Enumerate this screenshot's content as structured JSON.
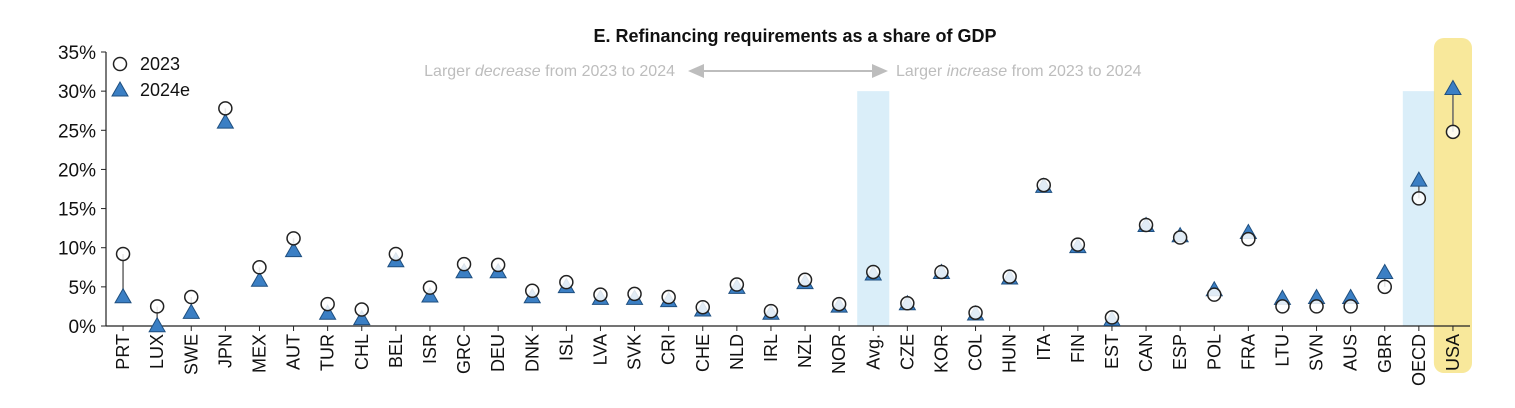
{
  "chart_data": {
    "type": "scatter",
    "title": "E. Refinancing requirements as a share of GDP",
    "xlabel": "",
    "ylabel": "",
    "ylim": [
      0,
      35
    ],
    "yticks": [
      "0%",
      "5%",
      "10%",
      "15%",
      "20%",
      "25%",
      "30%",
      "35%"
    ],
    "categories": [
      "PRT",
      "LUX",
      "SWE",
      "JPN",
      "MEX",
      "AUT",
      "TUR",
      "CHL",
      "BEL",
      "ISR",
      "GRC",
      "DEU",
      "DNK",
      "ISL",
      "LVA",
      "SVK",
      "CRI",
      "CHE",
      "NLD",
      "IRL",
      "NZL",
      "NOR",
      "Avg.",
      "CZE",
      "KOR",
      "COL",
      "HUN",
      "ITA",
      "FIN",
      "EST",
      "CAN",
      "ESP",
      "POL",
      "FRA",
      "LTU",
      "SVN",
      "AUS",
      "GBR",
      "OECD",
      "USA"
    ],
    "series": [
      {
        "name": "2023",
        "marker": "circle",
        "values": [
          9.2,
          2.5,
          3.7,
          27.8,
          7.5,
          11.2,
          2.8,
          2.1,
          9.2,
          4.9,
          7.9,
          7.8,
          4.5,
          5.6,
          4.0,
          4.1,
          3.7,
          2.4,
          5.3,
          1.9,
          5.9,
          2.8,
          6.9,
          2.9,
          6.9,
          1.7,
          6.3,
          18.0,
          10.4,
          1.1,
          12.9,
          11.3,
          4.0,
          11.1,
          2.5,
          2.5,
          2.5,
          5.0,
          16.3,
          24.8
        ]
      },
      {
        "name": "2024e",
        "marker": "triangle",
        "values": [
          3.8,
          0.1,
          1.8,
          26.1,
          5.9,
          9.7,
          1.7,
          1.0,
          8.4,
          3.9,
          7.0,
          7.0,
          3.8,
          5.1,
          3.6,
          3.6,
          3.3,
          2.1,
          5.0,
          1.7,
          5.6,
          2.6,
          6.7,
          2.9,
          6.9,
          1.6,
          6.2,
          17.9,
          10.2,
          0.9,
          12.9,
          11.6,
          4.7,
          12.0,
          3.6,
          3.7,
          3.7,
          6.9,
          18.7,
          30.4
        ]
      }
    ],
    "highlight": {
      "blue_bands": [
        "Avg.",
        "OECD"
      ],
      "yellow_band": "USA"
    },
    "colors": {
      "triangle_fill": "#3b7fc4",
      "band_blue": "#daeef9",
      "highlight_yellow": "#f6e07a",
      "connector": "#666666",
      "annotation": "#bdbdbd"
    },
    "legend": {
      "position": "top-left"
    },
    "annotation": {
      "left_prefix": "Larger ",
      "left_emph": "decrease",
      "left_suffix": " from 2023 to 2024",
      "right_prefix": "Larger ",
      "right_emph": "increase",
      "right_suffix": " from 2023 to 2024"
    },
    "grid": false
  }
}
